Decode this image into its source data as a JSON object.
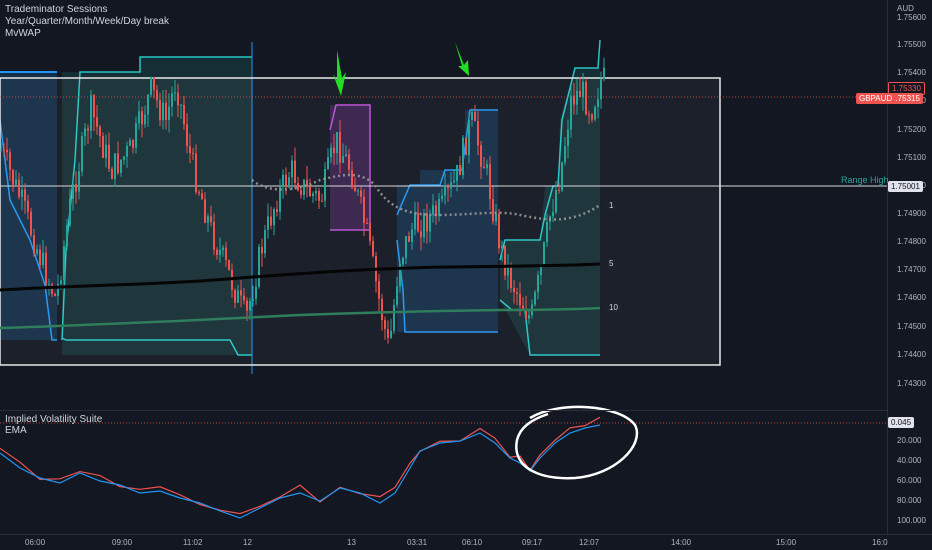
{
  "legend": {
    "line1": "Trademinator Sessions",
    "line2": "Year/Quarter/Month/Week/Day break",
    "line3": "MvWAP"
  },
  "price_axis": {
    "currency": "AUD",
    "ticks": [
      "1.75600",
      "1.75500",
      "1.75400",
      "1.75300",
      "1.75200",
      "1.75100",
      "1.75000",
      "1.74900",
      "1.74800",
      "1.74700",
      "1.74600",
      "1.74500",
      "1.74400",
      "1.74300"
    ],
    "tag_high": "1.75330",
    "tag_last": "1.75315",
    "tag_range": "1.75001",
    "symbol": "GBPAUD"
  },
  "range_label": "Range High",
  "mvwap_labels": [
    "1",
    "5",
    "10"
  ],
  "indicator": {
    "name": "Implied Volatility Suite",
    "sub": "EMA",
    "value_tag": "0.045",
    "ticks": [
      "20.000",
      "40.000",
      "60.000",
      "80.000",
      "100.000"
    ]
  },
  "time_axis": [
    "06:00",
    "09:00",
    "11:02",
    "12",
    "13",
    "03:31",
    "06:10",
    "09:17",
    "12:07",
    "14:00",
    "15:00",
    "16:0"
  ],
  "colors": {
    "background": "#131722",
    "up_candle": "#26a69a",
    "down_candle": "#ef5350",
    "session_teal": "#26c6c6",
    "session_blue": "#2196f3",
    "session_purple": "#ba4fd6",
    "range_box": "#ffffff",
    "arrow": "#22dd22",
    "iv_line": "#2196f3"
  }
}
